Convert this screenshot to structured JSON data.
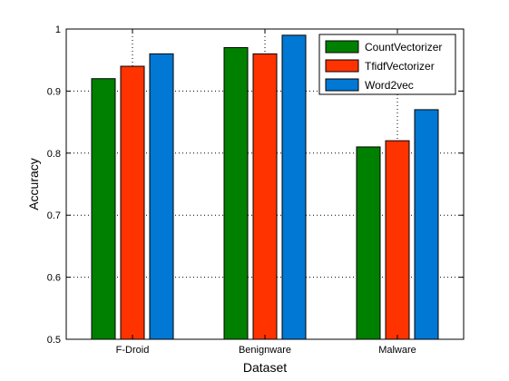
{
  "chart_data": {
    "type": "bar",
    "categories": [
      "F-Droid",
      "Benignware",
      "Malware"
    ],
    "series": [
      {
        "name": "CountVectorizer",
        "values": [
          0.92,
          0.97,
          0.81
        ],
        "color": "#008000"
      },
      {
        "name": "TfidfVectorizer",
        "values": [
          0.94,
          0.96,
          0.82
        ],
        "color": "#ff3300"
      },
      {
        "name": "Word2vec",
        "values": [
          0.96,
          0.99,
          0.87
        ],
        "color": "#0078d4"
      }
    ],
    "xlabel": "Dataset",
    "ylabel": "Accuracy",
    "ylim": [
      0.5,
      1
    ],
    "yticks": [
      "0.5",
      "0.6",
      "0.7",
      "0.8",
      "0.9",
      "1"
    ],
    "grid": true,
    "legend_position": "top-right"
  }
}
